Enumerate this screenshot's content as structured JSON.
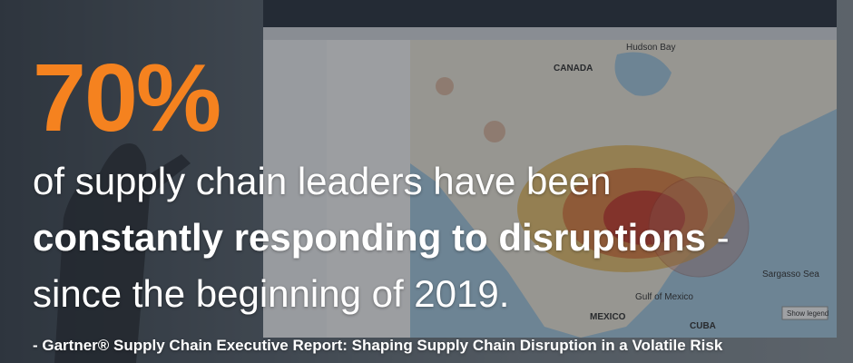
{
  "headline": {
    "stat": "70%",
    "line1": "of supply chain leaders have been",
    "line2_bold": "constantly responding to disruptions",
    "line2_rest": " -",
    "line3": "since the beginning of 2019."
  },
  "source": "- Gartner® Supply Chain Executive Report: Shaping Supply Chain Disruption in a Volatile Risk",
  "map": {
    "labels": [
      "CANADA",
      "Hudson Bay",
      "Gulf of Mexico",
      "MEXICO",
      "Sargasso Sea",
      "CUBA",
      "Show legend"
    ]
  }
}
